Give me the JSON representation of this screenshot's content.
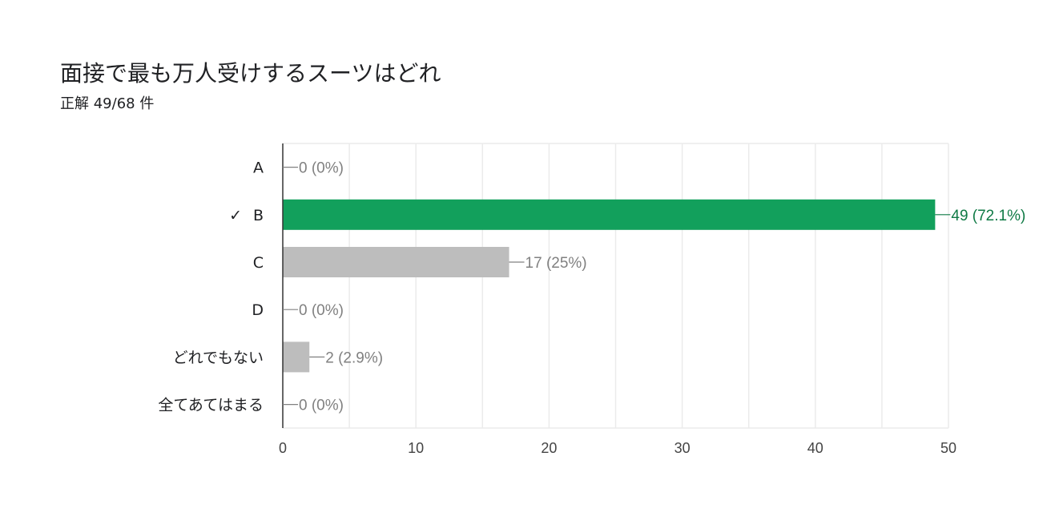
{
  "question": {
    "title": "面接で最も万人受けするスーツはどれ",
    "result": "正解 49/68 件"
  },
  "colors": {
    "correct_bar": "#12a05c",
    "other_bar": "#bdbdbd",
    "correct_label": "#0f7a45",
    "other_label": "#808080",
    "gridline": "#ebebeb",
    "axis": "#333333"
  },
  "chart_data": {
    "type": "bar",
    "orientation": "horizontal",
    "categories": [
      "A",
      "B",
      "C",
      "D",
      "どれでもない",
      "全てあてはまる"
    ],
    "values": [
      0,
      49,
      17,
      0,
      2,
      0
    ],
    "value_labels": [
      "0 (0%)",
      "49 (72.1%)",
      "17 (25%)",
      "0 (0%)",
      "2 (2.9%)",
      "0 (0%)"
    ],
    "correct_index": 1,
    "correct_mark": "✓",
    "xlim": [
      0,
      50
    ],
    "xticks": [
      0,
      10,
      20,
      30,
      40,
      50
    ],
    "minor_grid_step": 5,
    "grid": true
  }
}
